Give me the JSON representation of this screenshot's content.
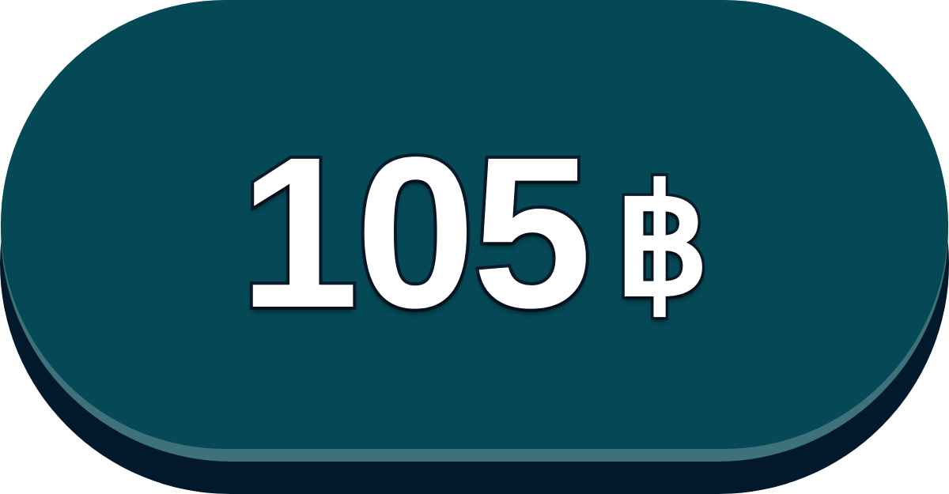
{
  "price_badge": {
    "amount": "105",
    "currency_symbol": "฿"
  },
  "colors": {
    "face": "#054856",
    "rim": "#3e7179",
    "shadow": "#02192b",
    "text": "#ffffff",
    "text_outline": "#0a1b2c"
  }
}
